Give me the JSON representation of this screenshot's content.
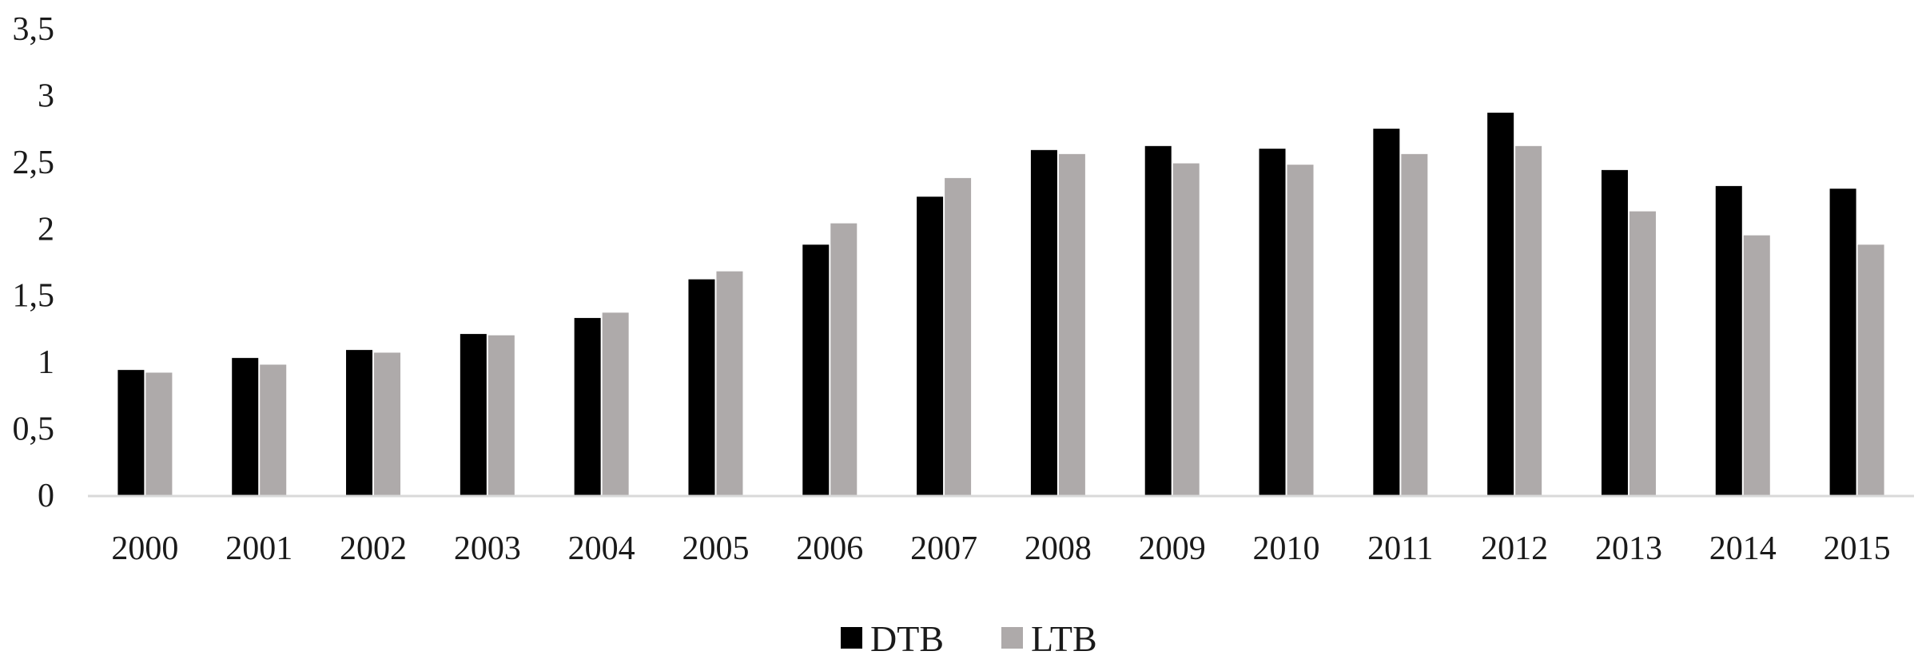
{
  "chart_data": {
    "type": "bar",
    "categories": [
      "2000",
      "2001",
      "2002",
      "2003",
      "2004",
      "2005",
      "2006",
      "2007",
      "2008",
      "2009",
      "2010",
      "2011",
      "2012",
      "2013",
      "2014",
      "2015"
    ],
    "series": [
      {
        "name": "DTB",
        "color": "#000000",
        "values": [
          0.94,
          1.03,
          1.09,
          1.21,
          1.33,
          1.62,
          1.88,
          2.24,
          2.59,
          2.62,
          2.6,
          2.75,
          2.87,
          2.44,
          2.32,
          2.3
        ]
      },
      {
        "name": "LTB",
        "color": "#aeaaaa",
        "values": [
          0.92,
          0.98,
          1.07,
          1.2,
          1.37,
          1.68,
          2.04,
          2.38,
          2.56,
          2.49,
          2.48,
          2.56,
          2.62,
          2.13,
          1.95,
          1.88
        ]
      }
    ],
    "y_ticks": [
      "0",
      "0,5",
      "1",
      "1,5",
      "2",
      "2,5",
      "3",
      "3,5"
    ],
    "ylim": [
      0,
      3.5
    ],
    "grid": false,
    "legend_position": "bottom-center",
    "axis_color": "#d9d9d9"
  }
}
